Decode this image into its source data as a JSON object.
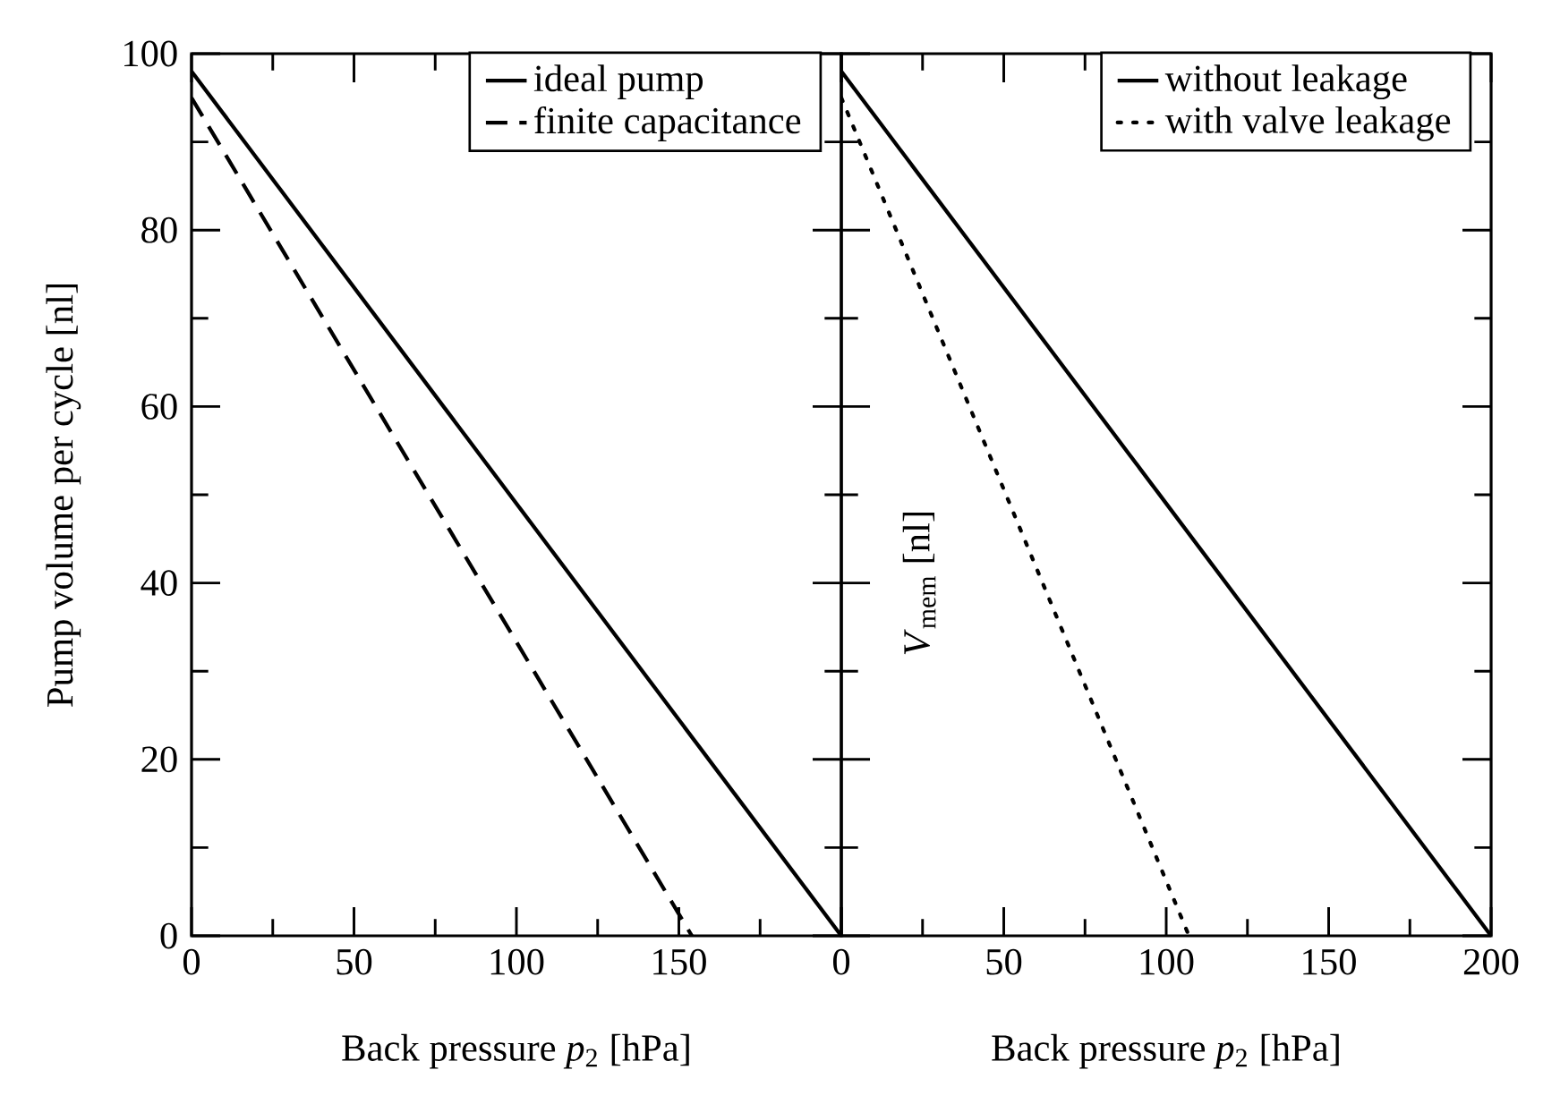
{
  "chart_data": [
    {
      "type": "line",
      "xlabel": "Back pressure *p*$_{2}$ [hPa]",
      "ylabel": "Pump volume per cycle [nl]",
      "xlim": [
        0,
        200
      ],
      "ylim": [
        0,
        100
      ],
      "xticks": [
        0,
        50,
        100,
        150,
        {
          "value": 200,
          "label": null
        }
      ],
      "yticks": [
        0,
        20,
        40,
        60,
        80,
        100
      ],
      "legend": "top right",
      "marker": "none",
      "series": [
        {
          "name": "ideal pump",
          "color": "#000000",
          "line_style": "solid",
          "x": [
            0,
            200
          ],
          "values": [
            98,
            0
          ]
        },
        {
          "name": "finite capacitance",
          "color": "#000000",
          "line_style": "dashed",
          "x": [
            0,
            154
          ],
          "values": [
            95,
            0
          ]
        }
      ]
    },
    {
      "type": "line",
      "xlabel": "Back pressure *p*$_{2}$ [hPa]",
      "xlim": [
        0,
        200
      ],
      "ylim": [
        0,
        100
      ],
      "xticks": [
        0,
        50,
        100,
        150,
        200
      ],
      "yticks": [
        0,
        20,
        40,
        60,
        80,
        100
      ],
      "tick_labels": "x",
      "legend": "top right",
      "marker": "none",
      "annotations": [
        "*V*$_{mem}$ [nl]"
      ],
      "series": [
        {
          "name": "without leakage",
          "color": "#000000",
          "line_style": "solid",
          "x": [
            0,
            200
          ],
          "values": [
            98,
            0
          ]
        },
        {
          "name": "with valve leakage",
          "color": "#000000",
          "line_style": "dotted",
          "x": [
            0,
            107
          ],
          "values": [
            95,
            0
          ]
        }
      ]
    }
  ]
}
